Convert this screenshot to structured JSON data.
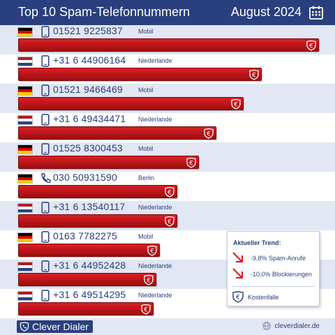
{
  "header": {
    "title": "Top 10 Spam-Telefonnummern",
    "date": "August 2024",
    "calendar_icon": "calendar-icon"
  },
  "colors": {
    "header_bg": "#2a3f7e",
    "bar_red": "#c0161b",
    "row_alt": "#e2e7f3"
  },
  "rows": [
    {
      "country": "de",
      "icon": "mobile-phone-icon",
      "number": "01521 9225837",
      "region": "Mobil",
      "share": 1.0
    },
    {
      "country": "nl",
      "icon": "mobile-phone-icon",
      "number": "+31 6 44906164",
      "region": "Niederlande",
      "share": 0.81
    },
    {
      "country": "de",
      "icon": "mobile-phone-icon",
      "number": "01521 9466469",
      "region": "Mobil",
      "share": 0.75
    },
    {
      "country": "nl",
      "icon": "mobile-phone-icon",
      "number": "+31 6 49434471",
      "region": "Niederlande",
      "share": 0.66
    },
    {
      "country": "de",
      "icon": "mobile-phone-icon",
      "number": "01525 8300453",
      "region": "Mobil",
      "share": 0.6
    },
    {
      "country": "de",
      "icon": "landline-phone-icon",
      "number": "030 50931590",
      "region": "Berlin",
      "share": 0.53
    },
    {
      "country": "nl",
      "icon": "mobile-phone-icon",
      "number": "+31 6 13540117",
      "region": "Niederlande",
      "share": 0.53
    },
    {
      "country": "de",
      "icon": "mobile-phone-icon",
      "number": "0163 7782275",
      "region": "Mobil",
      "share": 0.47
    },
    {
      "country": "nl",
      "icon": "mobile-phone-icon",
      "number": "+31 6 44952428",
      "region": "Niederlande",
      "share": 0.46
    },
    {
      "country": "nl",
      "icon": "mobile-phone-icon",
      "number": "+31 6 49514295",
      "region": "Niederlande",
      "share": 0.45
    }
  ],
  "trend": {
    "title": "Aktueller Trend:",
    "items": [
      {
        "icon": "down-right-arrow-icon",
        "text": "-9,8% Spam-Anrufe"
      },
      {
        "icon": "down-right-arrow-icon",
        "text": "-10,0% Blockierungen"
      }
    ],
    "legend_icon": "cost-trap-icon",
    "legend_text": "Kostenfalle"
  },
  "footer": {
    "brand": "Clever Dialer",
    "site": "cleverdialer.de"
  }
}
